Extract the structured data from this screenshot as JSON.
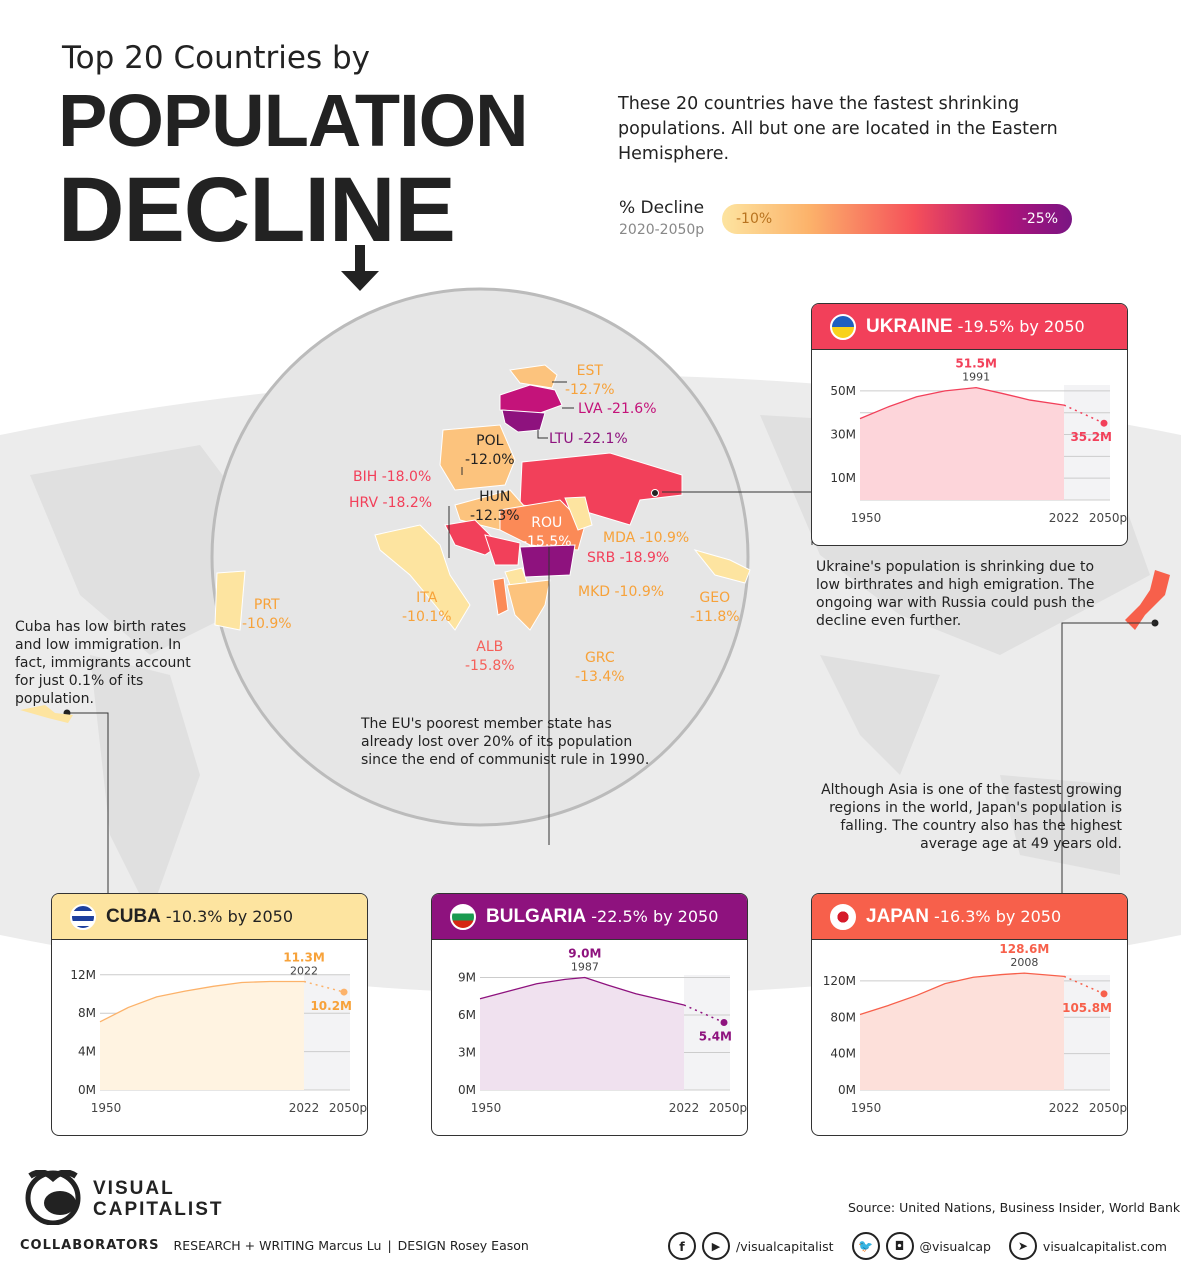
{
  "title": {
    "line1": "Top 20 Countries by",
    "line2": "POPULATION",
    "line3": "DECLINE"
  },
  "intro": "These 20 countries have the fastest shrinking populations. All but one are located in the Eastern Hemisphere.",
  "legend": {
    "label": "% Decline",
    "sublabel": "2020-2050p",
    "min": "-10%",
    "max": "-25%"
  },
  "countries": [
    {
      "code": "EST",
      "value": "-12.7%",
      "color": "#fcc37d"
    },
    {
      "code": "LVA",
      "value": "-21.6%",
      "color": "#c4137a"
    },
    {
      "code": "LTU",
      "value": "-22.1%",
      "color": "#8e127e"
    },
    {
      "code": "POL",
      "value": "-12.0%",
      "color": "#fcc37d"
    },
    {
      "code": "BIH",
      "value": "-18.0%",
      "color": "#f2405a"
    },
    {
      "code": "HRV",
      "value": "-18.2%",
      "color": "#f2405a"
    },
    {
      "code": "HUN",
      "value": "-12.3%",
      "color": "#fcc37d"
    },
    {
      "code": "ROU",
      "value": "-15.5%",
      "color": "#fb8a57"
    },
    {
      "code": "MDA",
      "value": "-10.9%",
      "color": "#fde4a0"
    },
    {
      "code": "SRB",
      "value": "-18.9%",
      "color": "#f2405a"
    },
    {
      "code": "MKD",
      "value": "-10.9%",
      "color": "#fde4a0"
    },
    {
      "code": "ITA",
      "value": "-10.1%",
      "color": "#fde4a0"
    },
    {
      "code": "ALB",
      "value": "-15.8%",
      "color": "#fb8a57"
    },
    {
      "code": "GRC",
      "value": "-13.4%",
      "color": "#fcc37d"
    },
    {
      "code": "GEO",
      "value": "-11.8%",
      "color": "#fde4a0"
    },
    {
      "code": "PRT",
      "value": "-10.9%",
      "color": "#fde4a0"
    }
  ],
  "notes": {
    "ukraine": "Ukraine's population is shrinking due to low birthrates and high emigration. The ongoing war with Russia could push the decline even further.",
    "cuba": "Cuba has low birth rates and low immigration. In fact, immigrants account for just 0.1% of its population.",
    "bulgaria": "The EU's poorest member state has already  lost over 20% of its population since the end of communist rule in 1990.",
    "japan": "Although Asia is one of the fastest growing regions in the world, Japan's population is falling. The country also has the  highest average age at 49 years old."
  },
  "chart_data": [
    {
      "type": "area",
      "id": "ukraine",
      "name": "UKRAINE",
      "decline": "-19.5% by 2050",
      "color": "#f2405a",
      "fill": "#fdd5da",
      "header_text": "#ffffff",
      "x": [
        1950,
        1960,
        1970,
        1980,
        1991,
        2000,
        2010,
        2022
      ],
      "y": [
        37.3,
        42.7,
        47.3,
        50.0,
        51.5,
        48.9,
        45.8,
        43.5
      ],
      "projection": {
        "x": 2050,
        "y": 35.2,
        "label": "35.2M"
      },
      "peak": {
        "x": 1991,
        "label": "51.5M",
        "year": "1991"
      },
      "yticks": [
        {
          "v": 50,
          "t": "50M"
        },
        {
          "v": 30,
          "t": "30M"
        },
        {
          "v": 10,
          "t": "10M"
        }
      ],
      "grid": [
        10,
        20,
        30,
        40,
        50
      ],
      "ylim": [
        0,
        55
      ],
      "xticks": [
        "1950",
        "2022",
        "2050p"
      ]
    },
    {
      "type": "area",
      "id": "cuba",
      "name": "CUBA",
      "decline": "-10.3% by 2050",
      "color": "#fde4a0",
      "fill": "#fff3e1",
      "line": "#fcb26a",
      "label": "#f7a23a",
      "header_text": "#222222",
      "x": [
        1950,
        1960,
        1970,
        1980,
        1990,
        2000,
        2010,
        2022
      ],
      "y": [
        7.1,
        8.6,
        9.7,
        10.3,
        10.8,
        11.2,
        11.3,
        11.3
      ],
      "projection": {
        "x": 2050,
        "y": 10.2,
        "label": "10.2M"
      },
      "peak": {
        "x": 2022,
        "label": "11.3M",
        "year": "2022"
      },
      "yticks": [
        {
          "v": 12,
          "t": "12M"
        },
        {
          "v": 8,
          "t": "8M"
        },
        {
          "v": 4,
          "t": "4M"
        },
        {
          "v": 0,
          "t": "0M"
        }
      ],
      "grid": [
        4,
        8,
        12
      ],
      "ylim": [
        0,
        12.5
      ],
      "xticks": [
        "1950",
        "2022",
        "2050p"
      ]
    },
    {
      "type": "area",
      "id": "bulgaria",
      "name": "BULGARIA",
      "decline": "-22.5% by 2050",
      "color": "#8e127e",
      "fill": "#f0e1ef",
      "header_text": "#ffffff",
      "x": [
        1950,
        1960,
        1970,
        1980,
        1987,
        1995,
        2005,
        2022
      ],
      "y": [
        7.3,
        7.9,
        8.5,
        8.85,
        9.0,
        8.4,
        7.7,
        6.8
      ],
      "projection": {
        "x": 2050,
        "y": 5.4,
        "label": "5.4M"
      },
      "peak": {
        "x": 1987,
        "label": "9.0M",
        "year": "1987"
      },
      "yticks": [
        {
          "v": 9,
          "t": "9M"
        },
        {
          "v": 6,
          "t": "6M"
        },
        {
          "v": 3,
          "t": "3M"
        },
        {
          "v": 0,
          "t": "0M"
        }
      ],
      "grid": [
        3,
        6,
        9
      ],
      "ylim": [
        0,
        9.6
      ],
      "xticks": [
        "1950",
        "2022",
        "2050p"
      ]
    },
    {
      "type": "area",
      "id": "japan",
      "name": "JAPAN",
      "decline": "-16.3% by 2050",
      "color": "#f7604b",
      "fill": "#fde0da",
      "header_text": "#ffffff",
      "x": [
        1950,
        1960,
        1970,
        1980,
        1990,
        2000,
        2008,
        2022
      ],
      "y": [
        83,
        93,
        104,
        117,
        124,
        127,
        128.6,
        125
      ],
      "projection": {
        "x": 2050,
        "y": 105.8,
        "label": "105.8M"
      },
      "peak": {
        "x": 2008,
        "label": "128.6M",
        "year": "2008"
      },
      "yticks": [
        {
          "v": 120,
          "t": "120M"
        },
        {
          "v": 80,
          "t": "80M"
        },
        {
          "v": 40,
          "t": "40M"
        },
        {
          "v": 0,
          "t": "0M"
        }
      ],
      "grid": [
        40,
        80,
        120
      ],
      "ylim": [
        0,
        132
      ],
      "xticks": [
        "1950",
        "2022",
        "2050p"
      ]
    }
  ],
  "footer": {
    "brand1": "VISUAL",
    "brand2": "CAPITALIST",
    "source": "Source: United Nations, Business Insider, World Bank",
    "collab": "COLLABORATORS",
    "research": "RESEARCH + WRITING Marcus Lu",
    "sep": "|",
    "design": "DESIGN Rosey Eason",
    "fb_yt": "/visualcapitalist",
    "tw_ig": "@visualcap",
    "web": "visualcapitalist.com"
  }
}
